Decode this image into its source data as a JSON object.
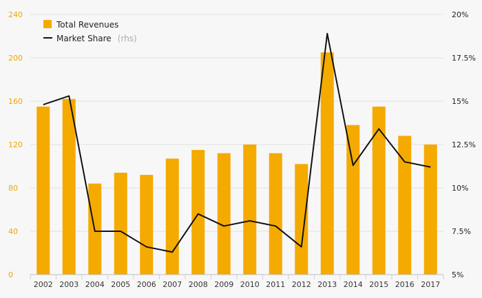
{
  "chart_data": {
    "type": "bar",
    "title": "",
    "xlabel": "",
    "ylabel": "",
    "categories": [
      "2002",
      "2003",
      "2004",
      "2005",
      "2006",
      "2007",
      "2008",
      "2009",
      "2010",
      "2011",
      "2012",
      "2013",
      "2014",
      "2015",
      "2016",
      "2017"
    ],
    "series": [
      {
        "name": "Total Revenues",
        "type": "bar",
        "axis": "left",
        "color": "#f5aa00",
        "values": [
          155,
          162,
          84,
          94,
          92,
          107,
          115,
          112,
          120,
          112,
          102,
          205,
          138,
          155,
          128,
          120
        ]
      },
      {
        "name": "Market Share",
        "type": "line",
        "axis": "right",
        "color": "#111111",
        "values": [
          14.8,
          15.3,
          7.5,
          7.5,
          6.6,
          6.3,
          8.5,
          7.8,
          8.1,
          7.8,
          6.6,
          18.9,
          11.3,
          13.4,
          11.5,
          11.2
        ]
      }
    ],
    "ylim": [
      0,
      240
    ],
    "y2lim": [
      5,
      20
    ],
    "left_ticks": [
      "0",
      "40",
      "80",
      "120",
      "160",
      "200",
      "240"
    ],
    "right_ticks": [
      "5%",
      "7.5%",
      "10%",
      "12.5%",
      "15%",
      "17.5%",
      "20%"
    ],
    "legend": {
      "position": "top-left",
      "revenues_label": "Total Revenues",
      "share_label": "Market Share",
      "share_suffix": "(rhs)"
    },
    "grid": true
  }
}
